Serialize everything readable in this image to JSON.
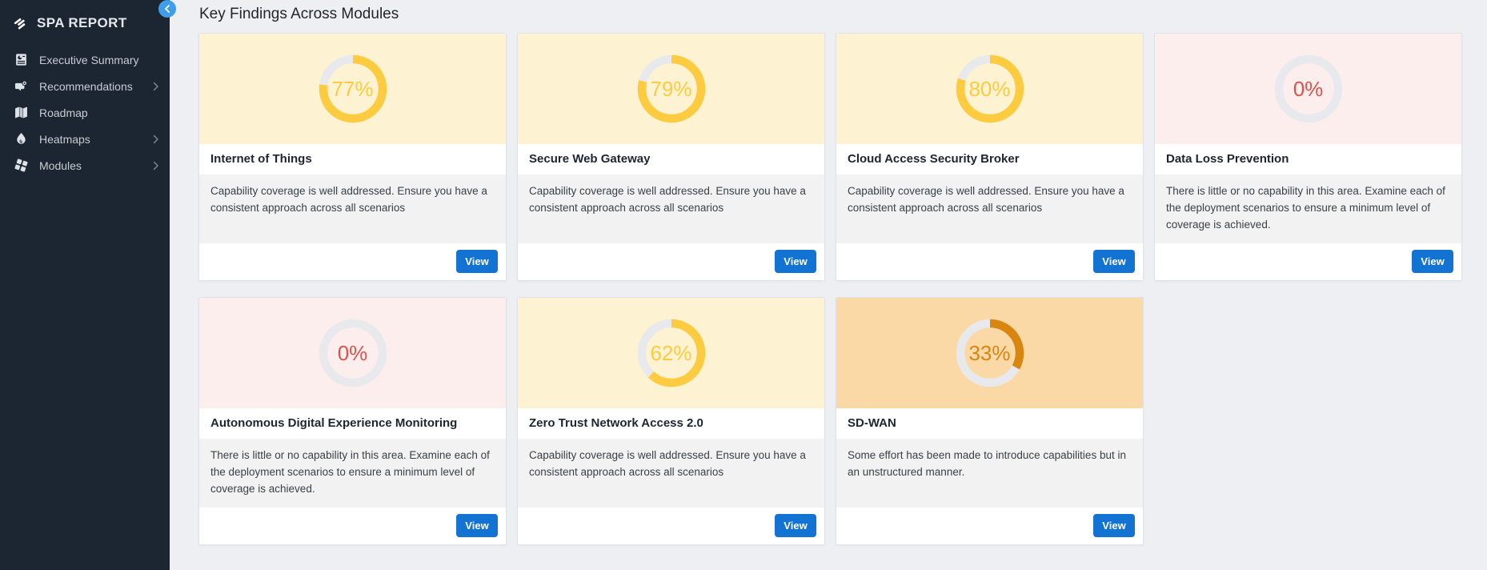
{
  "sidebar": {
    "brand": "SPA REPORT",
    "items": [
      {
        "label": "Executive Summary",
        "icon": "report-icon",
        "has_submenu": false
      },
      {
        "label": "Recommendations",
        "icon": "megaphone-icon",
        "has_submenu": true
      },
      {
        "label": "Roadmap",
        "icon": "map-icon",
        "has_submenu": false
      },
      {
        "label": "Heatmaps",
        "icon": "flame-icon",
        "has_submenu": true
      },
      {
        "label": "Modules",
        "icon": "modules-icon",
        "has_submenu": true
      }
    ],
    "collapse_icon": "chevron-left-icon"
  },
  "main": {
    "heading": "Key Findings Across Modules",
    "view_button_label": "View"
  },
  "cards": [
    {
      "title": "Internet of Things",
      "percent": 77,
      "percent_label": "77%",
      "status": "good",
      "description": "Capability coverage is well addressed. Ensure you have a consistent approach across all scenarios"
    },
    {
      "title": "Secure Web Gateway",
      "percent": 79,
      "percent_label": "79%",
      "status": "good",
      "description": "Capability coverage is well addressed. Ensure you have a consistent approach across all scenarios"
    },
    {
      "title": "Cloud Access Security Broker",
      "percent": 80,
      "percent_label": "80%",
      "status": "good",
      "description": "Capability coverage is well addressed. Ensure you have a consistent approach across all scenarios"
    },
    {
      "title": "Data Loss Prevention",
      "percent": 0,
      "percent_label": "0%",
      "status": "none",
      "description": "There is little or no capability in this area. Examine each of the deployment scenarios to ensure a minimum level of coverage is achieved."
    },
    {
      "title": "Autonomous Digital Experience Monitoring",
      "percent": 0,
      "percent_label": "0%",
      "status": "none",
      "description": "There is little or no capability in this area. Examine each of the deployment scenarios to ensure a minimum level of coverage is achieved."
    },
    {
      "title": "Zero Trust Network Access 2.0",
      "percent": 62,
      "percent_label": "62%",
      "status": "good",
      "description": "Capability coverage is well addressed. Ensure you have a consistent approach across all scenarios"
    },
    {
      "title": "SD-WAN",
      "percent": 33,
      "percent_label": "33%",
      "status": "partial",
      "description": "Some effort has been made to introduce capabilities but in an unstructured manner."
    }
  ],
  "colors": {
    "page_bg": "#edeff2",
    "sidebar_bg": "#1c2633",
    "collapse_button": "#3f9de9",
    "view_button": "#1273d2",
    "ring_track": "#e7e9ec",
    "themes": {
      "good": {
        "header_bg": "#fdf3d2",
        "accent": "#fccb40"
      },
      "none": {
        "header_bg": "#fdeeee",
        "accent": "#d9534f"
      },
      "partial": {
        "header_bg": "#fbd9a7",
        "accent": "#d8860f"
      }
    }
  }
}
